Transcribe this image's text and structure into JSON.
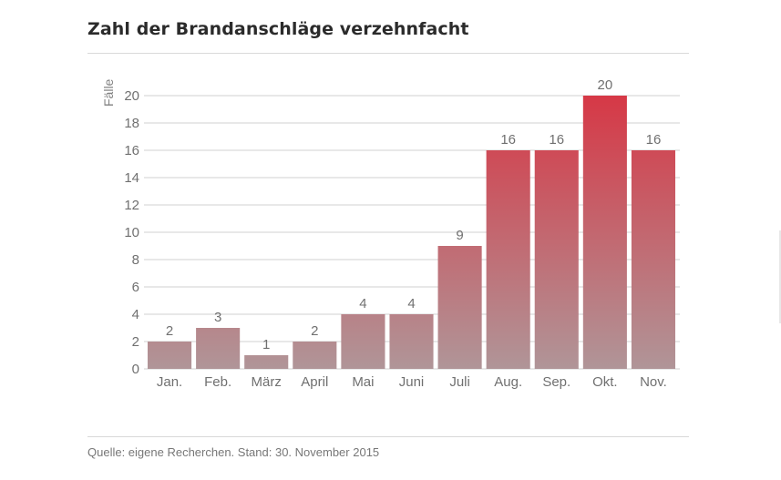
{
  "header": {
    "title": "Zahl der Brandanschläge verzehnfacht"
  },
  "footer": {
    "source": "Quelle: eigene Recherchen. Stand: 30. November 2015"
  },
  "colors": {
    "bar_low": "#b09598",
    "bar_high": "#d63846",
    "grid": "#d0d0d0",
    "text": "#707070"
  },
  "chart_data": {
    "type": "bar",
    "title": "Zahl der Brandanschläge verzehnfacht",
    "xlabel": "",
    "ylabel": "Fälle",
    "ylim": [
      0,
      20
    ],
    "yticks": [
      0,
      2,
      4,
      6,
      8,
      10,
      12,
      14,
      16,
      18,
      20
    ],
    "grid": true,
    "categories": [
      "Jan.",
      "Feb.",
      "März",
      "April",
      "Mai",
      "Juni",
      "Juli",
      "Aug.",
      "Sep.",
      "Okt.",
      "Nov."
    ],
    "values": [
      2,
      3,
      1,
      2,
      4,
      4,
      9,
      16,
      16,
      20,
      16
    ],
    "data_labels": true
  }
}
